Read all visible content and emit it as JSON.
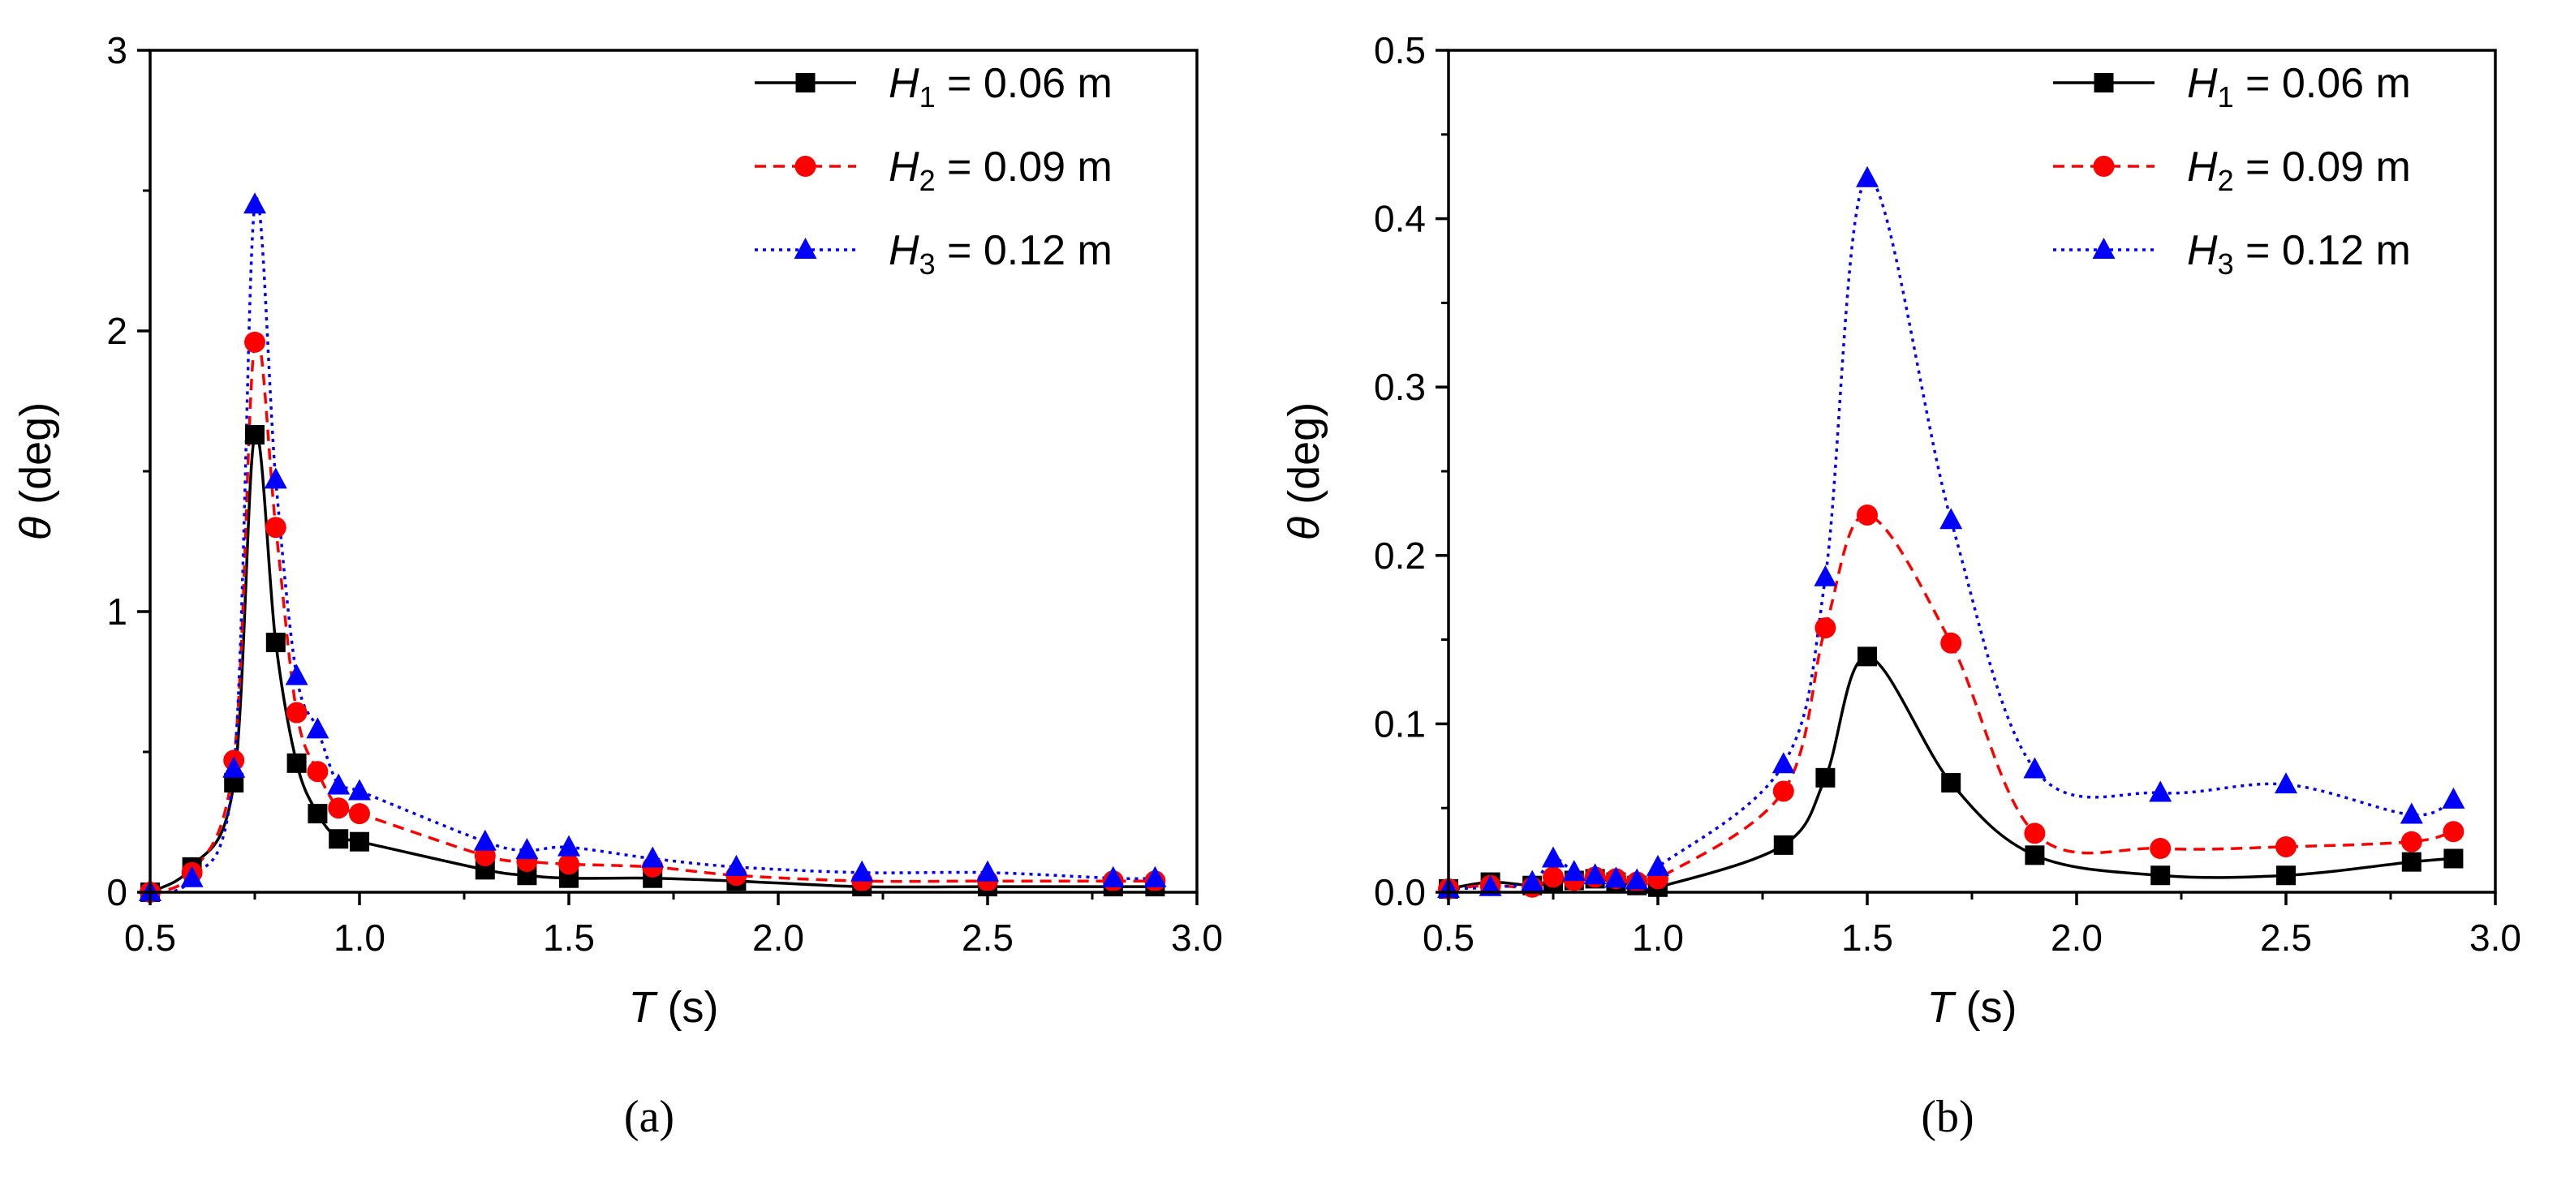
{
  "chart_data": [
    {
      "type": "line",
      "panel_label": "(a)",
      "xlabel_var": "T",
      "xlabel_unit": "(s)",
      "ylabel_var": "θ",
      "ylabel_unit": "(deg)",
      "xlim": [
        0.5,
        3.0
      ],
      "ylim": [
        0,
        3
      ],
      "xticks": [
        0.5,
        1.0,
        1.5,
        2.0,
        2.5,
        3.0
      ],
      "xtick_labels": [
        "0.5",
        "1.0",
        "1.5",
        "2.0",
        "2.5",
        "3.0"
      ],
      "yticks": [
        0,
        1,
        2,
        3
      ],
      "ytick_labels": [
        "0",
        "1",
        "2",
        "3"
      ],
      "legend_position": "top-right",
      "series": [
        {
          "name": "H1 = 0.06 m",
          "legend_var": "H",
          "legend_sub": "1",
          "legend_val": " = 0.06 m",
          "color": "#000000",
          "marker": "square",
          "line_style": "solid",
          "x": [
            0.5,
            0.6,
            0.7,
            0.75,
            0.8,
            0.85,
            0.9,
            0.95,
            1.0,
            1.3,
            1.4,
            1.5,
            1.7,
            1.9,
            2.2,
            2.5,
            2.8,
            2.9
          ],
          "y": [
            0.0,
            0.09,
            0.39,
            1.63,
            0.89,
            0.46,
            0.28,
            0.19,
            0.18,
            0.08,
            0.06,
            0.05,
            0.05,
            0.04,
            0.02,
            0.02,
            0.02,
            0.02
          ]
        },
        {
          "name": "H2 = 0.09 m",
          "legend_var": "H",
          "legend_sub": "2",
          "legend_val": " = 0.09 m",
          "color": "#ff0000",
          "marker": "circle",
          "line_style": "dashed",
          "x": [
            0.5,
            0.6,
            0.7,
            0.75,
            0.8,
            0.85,
            0.9,
            0.95,
            1.0,
            1.3,
            1.4,
            1.5,
            1.7,
            1.9,
            2.2,
            2.5,
            2.8,
            2.9
          ],
          "y": [
            0.0,
            0.07,
            0.47,
            1.96,
            1.3,
            0.64,
            0.43,
            0.3,
            0.28,
            0.13,
            0.11,
            0.1,
            0.09,
            0.06,
            0.04,
            0.04,
            0.04,
            0.04
          ]
        },
        {
          "name": "H3 = 0.12 m",
          "legend_var": "H",
          "legend_sub": "3",
          "legend_val": " = 0.12 m",
          "color": "#0000ff",
          "marker": "triangle",
          "line_style": "dotted",
          "x": [
            0.5,
            0.6,
            0.7,
            0.75,
            0.8,
            0.85,
            0.9,
            0.95,
            1.0,
            1.3,
            1.4,
            1.5,
            1.7,
            1.9,
            2.2,
            2.5,
            2.8,
            2.9
          ],
          "y": [
            0.0,
            0.05,
            0.44,
            2.45,
            1.47,
            0.77,
            0.58,
            0.38,
            0.36,
            0.18,
            0.15,
            0.16,
            0.12,
            0.09,
            0.07,
            0.07,
            0.05,
            0.05
          ]
        }
      ]
    },
    {
      "type": "line",
      "panel_label": "(b)",
      "xlabel_var": "T",
      "xlabel_unit": "(s)",
      "ylabel_var": "θ",
      "ylabel_unit": "(deg)",
      "xlim": [
        0.5,
        3.0
      ],
      "ylim": [
        0,
        0.5
      ],
      "xticks": [
        0.5,
        1.0,
        1.5,
        2.0,
        2.5,
        3.0
      ],
      "xtick_labels": [
        "0.5",
        "1.0",
        "1.5",
        "2.0",
        "2.5",
        "3.0"
      ],
      "yticks": [
        0,
        0.1,
        0.2,
        0.3,
        0.4,
        0.5
      ],
      "ytick_labels": [
        "0.0",
        "0.1",
        "0.2",
        "0.3",
        "0.4",
        "0.5"
      ],
      "legend_position": "top-right",
      "series": [
        {
          "name": "H1 = 0.06 m",
          "legend_var": "H",
          "legend_sub": "1",
          "legend_val": " = 0.06 m",
          "color": "#000000",
          "marker": "square",
          "line_style": "solid",
          "x": [
            0.5,
            0.6,
            0.7,
            0.75,
            0.8,
            0.85,
            0.9,
            0.95,
            1.0,
            1.3,
            1.4,
            1.5,
            1.7,
            1.9,
            2.2,
            2.5,
            2.8,
            2.9
          ],
          "y": [
            0.002,
            0.006,
            0.004,
            0.006,
            0.007,
            0.008,
            0.006,
            0.004,
            0.003,
            0.028,
            0.068,
            0.14,
            0.065,
            0.022,
            0.01,
            0.01,
            0.018,
            0.02
          ]
        },
        {
          "name": "H2 = 0.09 m",
          "legend_var": "H",
          "legend_sub": "2",
          "legend_val": " = 0.09 m",
          "color": "#ff0000",
          "marker": "circle",
          "line_style": "dashed",
          "x": [
            0.5,
            0.6,
            0.7,
            0.75,
            0.8,
            0.85,
            0.9,
            0.95,
            1.0,
            1.3,
            1.4,
            1.5,
            1.7,
            1.9,
            2.2,
            2.5,
            2.8,
            2.9
          ],
          "y": [
            0.002,
            0.004,
            0.003,
            0.009,
            0.007,
            0.009,
            0.008,
            0.006,
            0.008,
            0.06,
            0.157,
            0.224,
            0.148,
            0.035,
            0.026,
            0.027,
            0.03,
            0.036
          ]
        },
        {
          "name": "H3 = 0.12 m",
          "legend_var": "H",
          "legend_sub": "3",
          "legend_val": " = 0.12 m",
          "color": "#0000ff",
          "marker": "triangle",
          "line_style": "dotted",
          "x": [
            0.5,
            0.6,
            0.7,
            0.75,
            0.8,
            0.85,
            0.9,
            0.95,
            1.0,
            1.3,
            1.4,
            1.5,
            1.7,
            1.9,
            2.2,
            2.5,
            2.8,
            2.9
          ],
          "y": [
            0.002,
            0.003,
            0.006,
            0.02,
            0.012,
            0.01,
            0.008,
            0.007,
            0.015,
            0.076,
            0.187,
            0.424,
            0.221,
            0.073,
            0.059,
            0.064,
            0.046,
            0.055
          ]
        }
      ]
    }
  ]
}
